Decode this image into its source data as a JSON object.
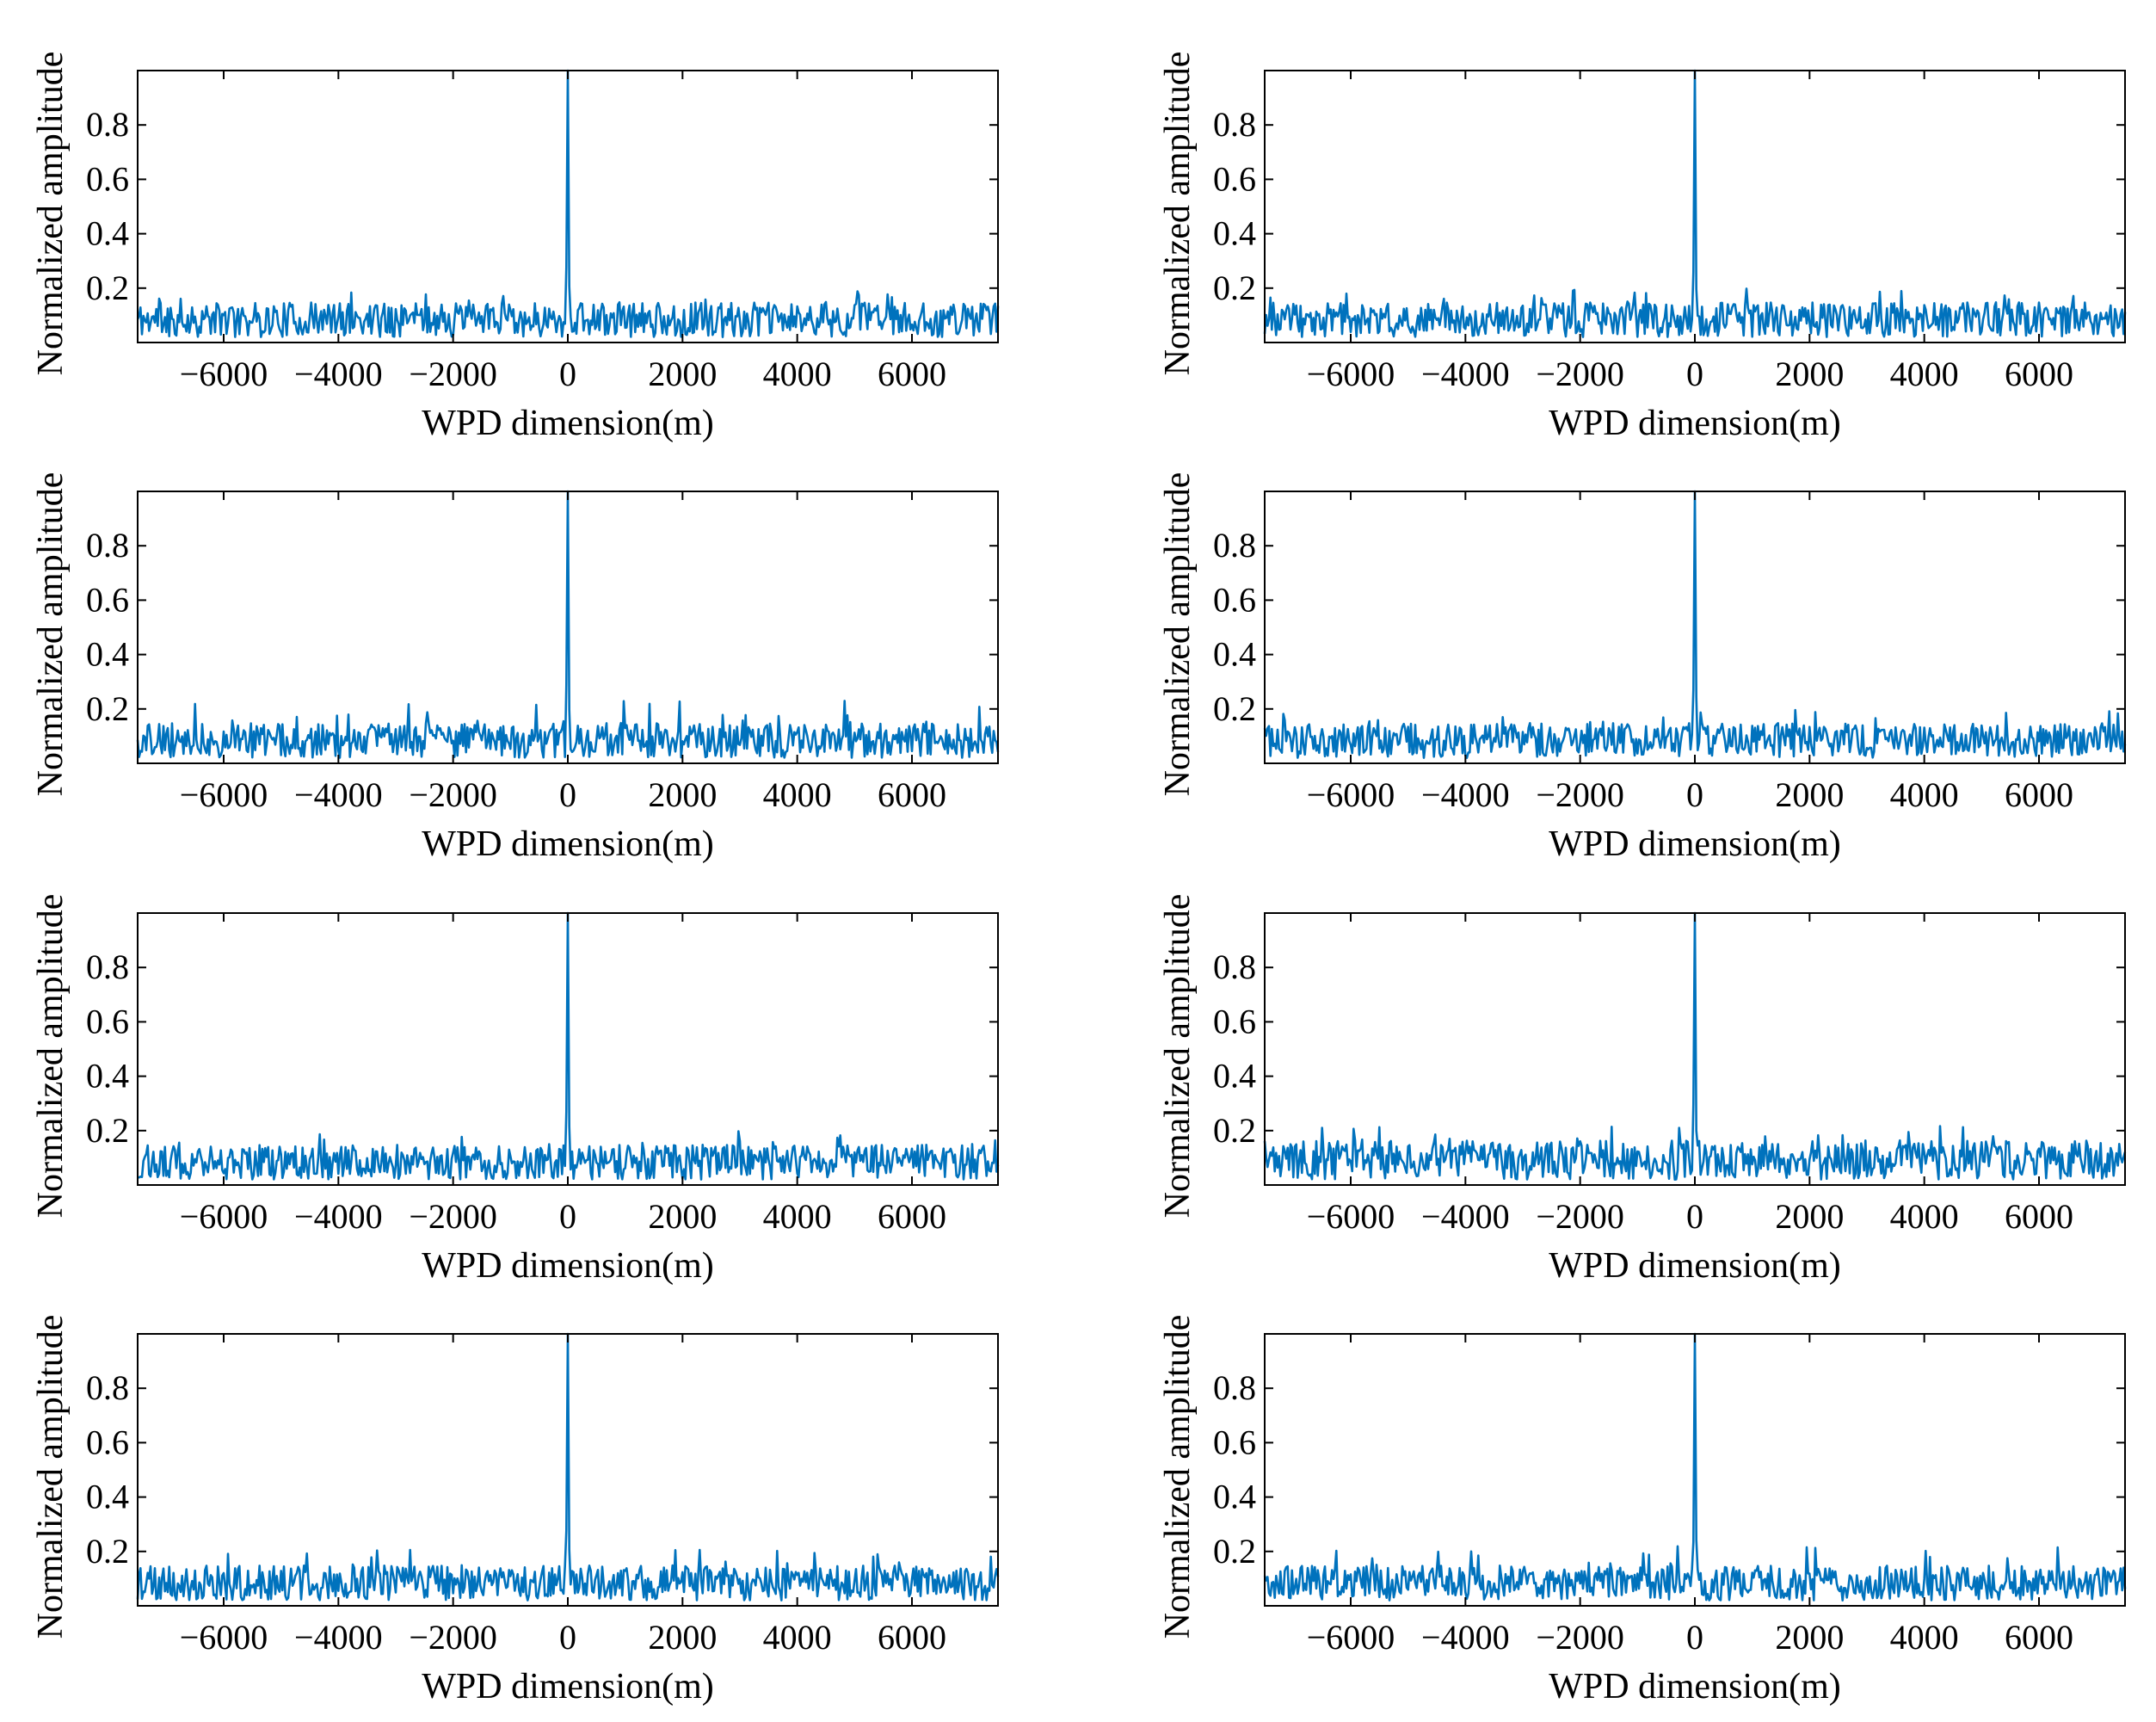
{
  "figure": {
    "rows": 4,
    "cols": 2,
    "line_color": "#0072BD"
  },
  "chart_data": [
    {
      "id": "r1c1",
      "type": "line",
      "xlabel": "WPD dimension(m)",
      "ylabel": "Normalized amplitude",
      "xlim": [
        -7500,
        7500
      ],
      "ylim": [
        0,
        1
      ],
      "xticks": [
        -6000,
        -4000,
        -2000,
        0,
        2000,
        4000,
        6000
      ],
      "xtick_labels": [
        "−6000",
        "−4000",
        "−2000",
        "0",
        "2000",
        "4000",
        "6000"
      ],
      "yticks": [
        0.2,
        0.4,
        0.6,
        0.8
      ],
      "ytick_labels": [
        "0.2",
        "0.4",
        "0.6",
        "0.8"
      ],
      "series": [
        {
          "name": "Normalized amplitude",
          "peak": {
            "x": 0,
            "y": 1.0
          },
          "noise_mean": 0.08,
          "noise_max": 0.19,
          "seed": 11
        }
      ]
    },
    {
      "id": "r1c2",
      "type": "line",
      "xlabel": "WPD dimension(m)",
      "ylabel": "Normalized amplitude",
      "xlim": [
        -7500,
        7500
      ],
      "ylim": [
        0,
        1
      ],
      "xticks": [
        -6000,
        -4000,
        -2000,
        0,
        2000,
        4000,
        6000
      ],
      "xtick_labels": [
        "−6000",
        "−4000",
        "−2000",
        "0",
        "2000",
        "4000",
        "6000"
      ],
      "yticks": [
        0.2,
        0.4,
        0.6,
        0.8
      ],
      "ytick_labels": [
        "0.2",
        "0.4",
        "0.6",
        "0.8"
      ],
      "series": [
        {
          "name": "Normalized amplitude",
          "peak": {
            "x": 0,
            "y": 1.0
          },
          "noise_mean": 0.08,
          "noise_max": 0.2,
          "seed": 23
        }
      ]
    },
    {
      "id": "r2c1",
      "type": "line",
      "xlabel": "WPD dimension(m)",
      "ylabel": "Normalized amplitude",
      "xlim": [
        -7500,
        7500
      ],
      "ylim": [
        0,
        1
      ],
      "xticks": [
        -6000,
        -4000,
        -2000,
        0,
        2000,
        4000,
        6000
      ],
      "xtick_labels": [
        "−6000",
        "−4000",
        "−2000",
        "0",
        "2000",
        "4000",
        "6000"
      ],
      "yticks": [
        0.2,
        0.4,
        0.6,
        0.8
      ],
      "ytick_labels": [
        "0.2",
        "0.4",
        "0.6",
        "0.8"
      ],
      "series": [
        {
          "name": "Normalized amplitude",
          "peak": {
            "x": 0,
            "y": 1.0
          },
          "noise_mean": 0.08,
          "noise_max": 0.23,
          "seed": 37
        }
      ]
    },
    {
      "id": "r2c2",
      "type": "line",
      "xlabel": "WPD dimension(m)",
      "ylabel": "Normalized amplitude",
      "xlim": [
        -7500,
        7500
      ],
      "ylim": [
        0,
        1
      ],
      "xticks": [
        -6000,
        -4000,
        -2000,
        0,
        2000,
        4000,
        6000
      ],
      "xtick_labels": [
        "−6000",
        "−4000",
        "−2000",
        "0",
        "2000",
        "4000",
        "6000"
      ],
      "yticks": [
        0.2,
        0.4,
        0.6,
        0.8
      ],
      "ytick_labels": [
        "0.2",
        "0.4",
        "0.6",
        "0.8"
      ],
      "series": [
        {
          "name": "Normalized amplitude",
          "peak": {
            "x": 0,
            "y": 1.0
          },
          "noise_mean": 0.08,
          "noise_max": 0.2,
          "seed": 41
        }
      ]
    },
    {
      "id": "r3c1",
      "type": "line",
      "xlabel": "WPD dimension(m)",
      "ylabel": "Normalized amplitude",
      "xlim": [
        -7500,
        7500
      ],
      "ylim": [
        0,
        1
      ],
      "xticks": [
        -6000,
        -4000,
        -2000,
        0,
        2000,
        4000,
        6000
      ],
      "xtick_labels": [
        "−6000",
        "−4000",
        "−2000",
        "0",
        "2000",
        "4000",
        "6000"
      ],
      "yticks": [
        0.2,
        0.4,
        0.6,
        0.8
      ],
      "ytick_labels": [
        "0.2",
        "0.4",
        "0.6",
        "0.8"
      ],
      "series": [
        {
          "name": "Normalized amplitude",
          "peak": {
            "x": 0,
            "y": 1.0
          },
          "noise_mean": 0.08,
          "noise_max": 0.2,
          "seed": 53
        }
      ]
    },
    {
      "id": "r3c2",
      "type": "line",
      "xlabel": "WPD dimension(m)",
      "ylabel": "Normalized amplitude",
      "xlim": [
        -7500,
        7500
      ],
      "ylim": [
        0,
        1
      ],
      "xticks": [
        -6000,
        -4000,
        -2000,
        0,
        2000,
        4000,
        6000
      ],
      "xtick_labels": [
        "−6000",
        "−4000",
        "−2000",
        "0",
        "2000",
        "4000",
        "6000"
      ],
      "yticks": [
        0.2,
        0.4,
        0.6,
        0.8
      ],
      "ytick_labels": [
        "0.2",
        "0.4",
        "0.6",
        "0.8"
      ],
      "series": [
        {
          "name": "Normalized amplitude",
          "peak": {
            "x": 0,
            "y": 1.0
          },
          "noise_mean": 0.09,
          "noise_max": 0.22,
          "seed": 67
        }
      ]
    },
    {
      "id": "r4c1",
      "type": "line",
      "xlabel": "WPD dimension(m)",
      "ylabel": "Normalized amplitude",
      "xlim": [
        -7500,
        7500
      ],
      "ylim": [
        0,
        1
      ],
      "xticks": [
        -6000,
        -4000,
        -2000,
        0,
        2000,
        4000,
        6000
      ],
      "xtick_labels": [
        "−6000",
        "−4000",
        "−2000",
        "0",
        "2000",
        "4000",
        "6000"
      ],
      "yticks": [
        0.2,
        0.4,
        0.6,
        0.8
      ],
      "ytick_labels": [
        "0.2",
        "0.4",
        "0.6",
        "0.8"
      ],
      "series": [
        {
          "name": "Normalized amplitude",
          "peak": {
            "x": 0,
            "y": 1.0
          },
          "noise_mean": 0.08,
          "noise_max": 0.21,
          "seed": 79
        }
      ]
    },
    {
      "id": "r4c2",
      "type": "line",
      "xlabel": "WPD dimension(m)",
      "ylabel": "Normalized amplitude",
      "xlim": [
        -7500,
        7500
      ],
      "ylim": [
        0,
        1
      ],
      "xticks": [
        -6000,
        -4000,
        -2000,
        0,
        2000,
        4000,
        6000
      ],
      "xtick_labels": [
        "−6000",
        "−4000",
        "−2000",
        "0",
        "2000",
        "4000",
        "6000"
      ],
      "yticks": [
        0.2,
        0.4,
        0.6,
        0.8
      ],
      "ytick_labels": [
        "0.2",
        "0.4",
        "0.6",
        "0.8"
      ],
      "series": [
        {
          "name": "Normalized amplitude",
          "peak": {
            "x": 0,
            "y": 1.0
          },
          "noise_mean": 0.08,
          "noise_max": 0.22,
          "seed": 83
        }
      ]
    }
  ]
}
